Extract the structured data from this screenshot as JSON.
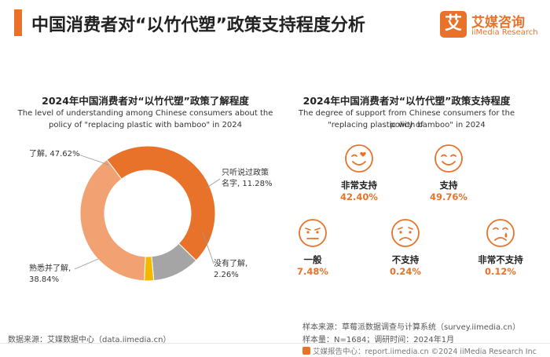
{
  "header": {
    "title": "中国消费者对“以竹代塑”政策支持程度分析",
    "logo_cn": "艾媒咨询",
    "logo_en": "iiMedia Research",
    "logo_mark": "艾"
  },
  "colors": {
    "accent": "#E8722A",
    "light_orange": "#F2A272",
    "gray": "#A5A5A5",
    "yellow": "#F5B800"
  },
  "left_panel": {
    "title": "2024年中国消费者对“以竹代塑”政策了解程度",
    "subtitle_1": "The level of understanding among Chinese consumers about the",
    "subtitle_2": "policy of \"replacing plastic with bamboo\" in 2024",
    "label_understand": "了解, 47.62%",
    "label_heard_1": "只听说过政策",
    "label_heard_2": "名字, 11.28%",
    "label_none_1": "没有了解,",
    "label_none_2": "2.26%",
    "label_familiar_1": "熟悉并了解,",
    "label_familiar_2": "38.84%"
  },
  "chart_data": [
    {
      "type": "pie",
      "title": "2024年中国消费者对“以竹代塑”政策了解程度",
      "categories": [
        "了解",
        "只听说过政策名字",
        "没有了解",
        "熟悉并了解"
      ],
      "values": [
        47.62,
        11.28,
        2.26,
        38.84
      ],
      "colors": [
        "#E8722A",
        "#A5A5A5",
        "#F5B800",
        "#F2A272"
      ],
      "unit": "%",
      "donut": true
    },
    {
      "type": "table",
      "title": "2024年中国消费者对“以竹代塑”政策支持程度",
      "categories": [
        "非常支持",
        "支持",
        "一般",
        "不支持",
        "非常不支持"
      ],
      "values": [
        42.4,
        49.76,
        7.48,
        0.24,
        0.12
      ],
      "unit": "%"
    }
  ],
  "right_panel": {
    "title": "2024年中国消费者对“以竹代塑”政策支持程度",
    "subtitle_1": "The degree of support from Chinese consumers for the policy of",
    "subtitle_2": "\"replacing plastic with bamboo\" in 2024",
    "items": [
      {
        "name": "非常支持",
        "value": "42.40%",
        "icon": "wink-heart-face-icon"
      },
      {
        "name": "支持",
        "value": "49.76%",
        "icon": "smile-face-icon"
      },
      {
        "name": "一般",
        "value": "7.48%",
        "icon": "neutral-face-icon"
      },
      {
        "name": "不支持",
        "value": "0.24%",
        "icon": "frown-face-icon"
      },
      {
        "name": "非常不支持",
        "value": "0.12%",
        "icon": "crying-face-icon"
      }
    ]
  },
  "footer": {
    "source_left": "数据来源：艾媒数据中心（data.iimedia.cn）",
    "sample_source": "样本来源：草莓派数据调查与计算系统（survey.iimedia.cn）",
    "sample_size": "样本量：N=1684；调研时间：2024年1月",
    "bottom": "艾媒报告中心：report.iimedia.cn ©2024 iiMedia Research Inc"
  }
}
